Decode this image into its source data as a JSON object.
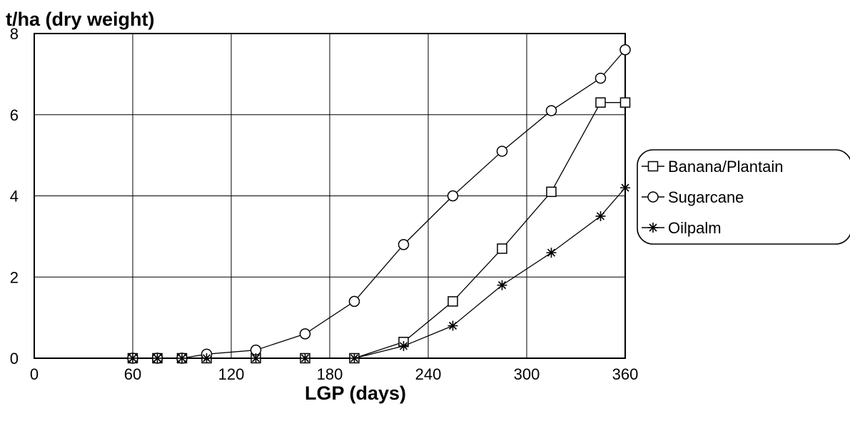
{
  "chart_data": {
    "type": "line",
    "ylabel": "t/ha (dry weight)",
    "xlabel": "LGP (days)",
    "xlim": [
      0,
      360
    ],
    "ylim": [
      0,
      8
    ],
    "x_ticks": [
      0,
      60,
      120,
      180,
      240,
      300,
      360
    ],
    "y_ticks": [
      0,
      2,
      4,
      6,
      8
    ],
    "grid": true,
    "legend_position": "right",
    "series": [
      {
        "name": "Banana/Plantain",
        "marker": "square",
        "x": [
          60,
          75,
          90,
          105,
          135,
          165,
          195,
          225,
          255,
          285,
          315,
          345,
          360
        ],
        "y": [
          0,
          0,
          0,
          0,
          0,
          0,
          0,
          0.4,
          1.4,
          2.7,
          4.1,
          6.3,
          6.3
        ]
      },
      {
        "name": "Sugarcane",
        "marker": "circle",
        "x": [
          60,
          75,
          90,
          105,
          135,
          165,
          195,
          225,
          255,
          285,
          315,
          345,
          360
        ],
        "y": [
          0,
          0,
          0,
          0.1,
          0.2,
          0.6,
          1.4,
          2.8,
          4.0,
          5.1,
          6.1,
          6.9,
          7.6
        ]
      },
      {
        "name": "Oilpalm",
        "marker": "star",
        "x": [
          60,
          75,
          90,
          105,
          135,
          165,
          195,
          225,
          255,
          285,
          315,
          345,
          360
        ],
        "y": [
          0,
          0,
          0,
          0,
          0,
          0,
          0,
          0.3,
          0.8,
          1.8,
          2.6,
          3.5,
          4.2
        ]
      }
    ]
  }
}
